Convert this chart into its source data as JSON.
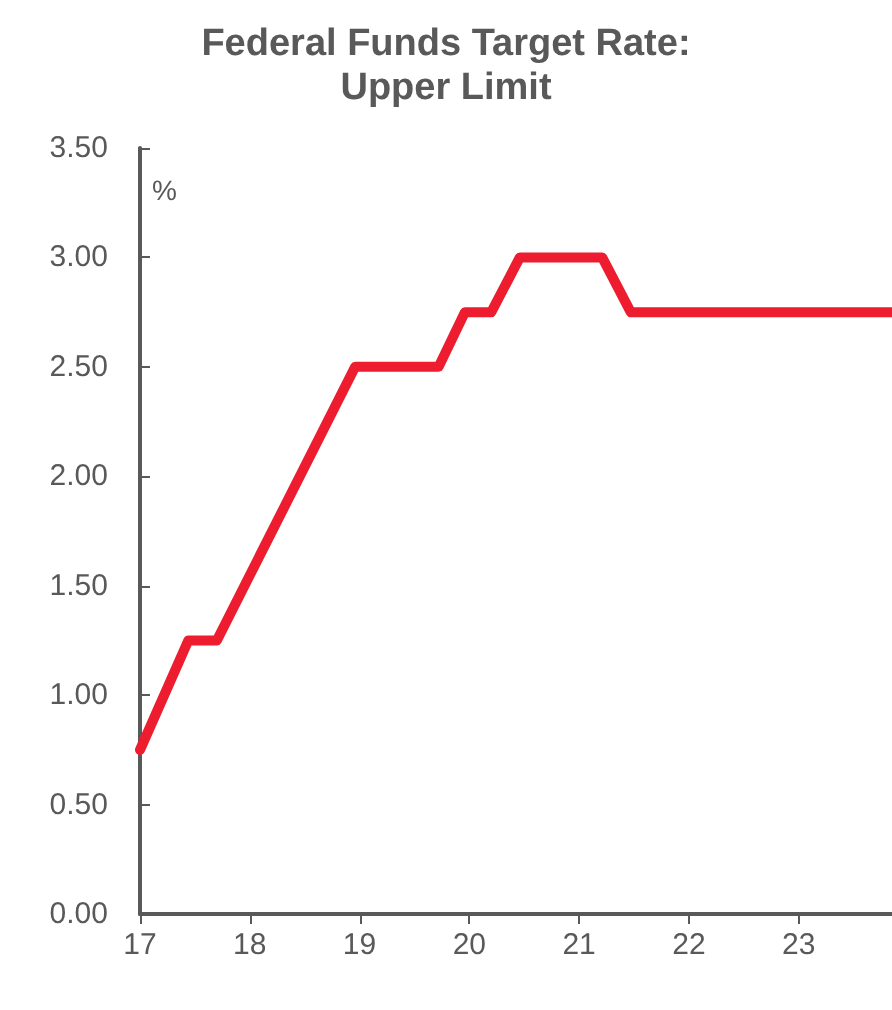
{
  "chart_data": {
    "type": "line",
    "title": "Federal Funds Target Rate:\nUpper Limit",
    "ylabel": "%",
    "x": [
      17,
      17.44,
      17.7,
      18.96,
      19.72,
      19.96,
      20.2,
      20.46,
      21.21,
      21.47,
      23.85
    ],
    "series": [
      {
        "color": "#ed1c2e",
        "values": [
          0.75,
          1.25,
          1.25,
          2.5,
          2.5,
          2.75,
          2.75,
          3.0,
          3.0,
          2.75,
          2.75
        ]
      }
    ],
    "xlim": [
      17,
      23.85
    ],
    "xticks": [
      17,
      18,
      19,
      20,
      21,
      22,
      23
    ],
    "ylim": [
      0,
      3.5
    ],
    "yticks": [
      {
        "value": 0,
        "label": "0.00"
      },
      {
        "value": 0.5,
        "label": "0.50"
      },
      {
        "value": 1,
        "label": "1.00"
      },
      {
        "value": 1.5,
        "label": "1.50"
      },
      {
        "value": 2,
        "label": "2.00"
      },
      {
        "value": 2.5,
        "label": "2.50"
      },
      {
        "value": 3,
        "label": "3.00"
      },
      {
        "value": 3.5,
        "label": "3.50"
      }
    ],
    "marker": "none",
    "line_style": "solid"
  }
}
